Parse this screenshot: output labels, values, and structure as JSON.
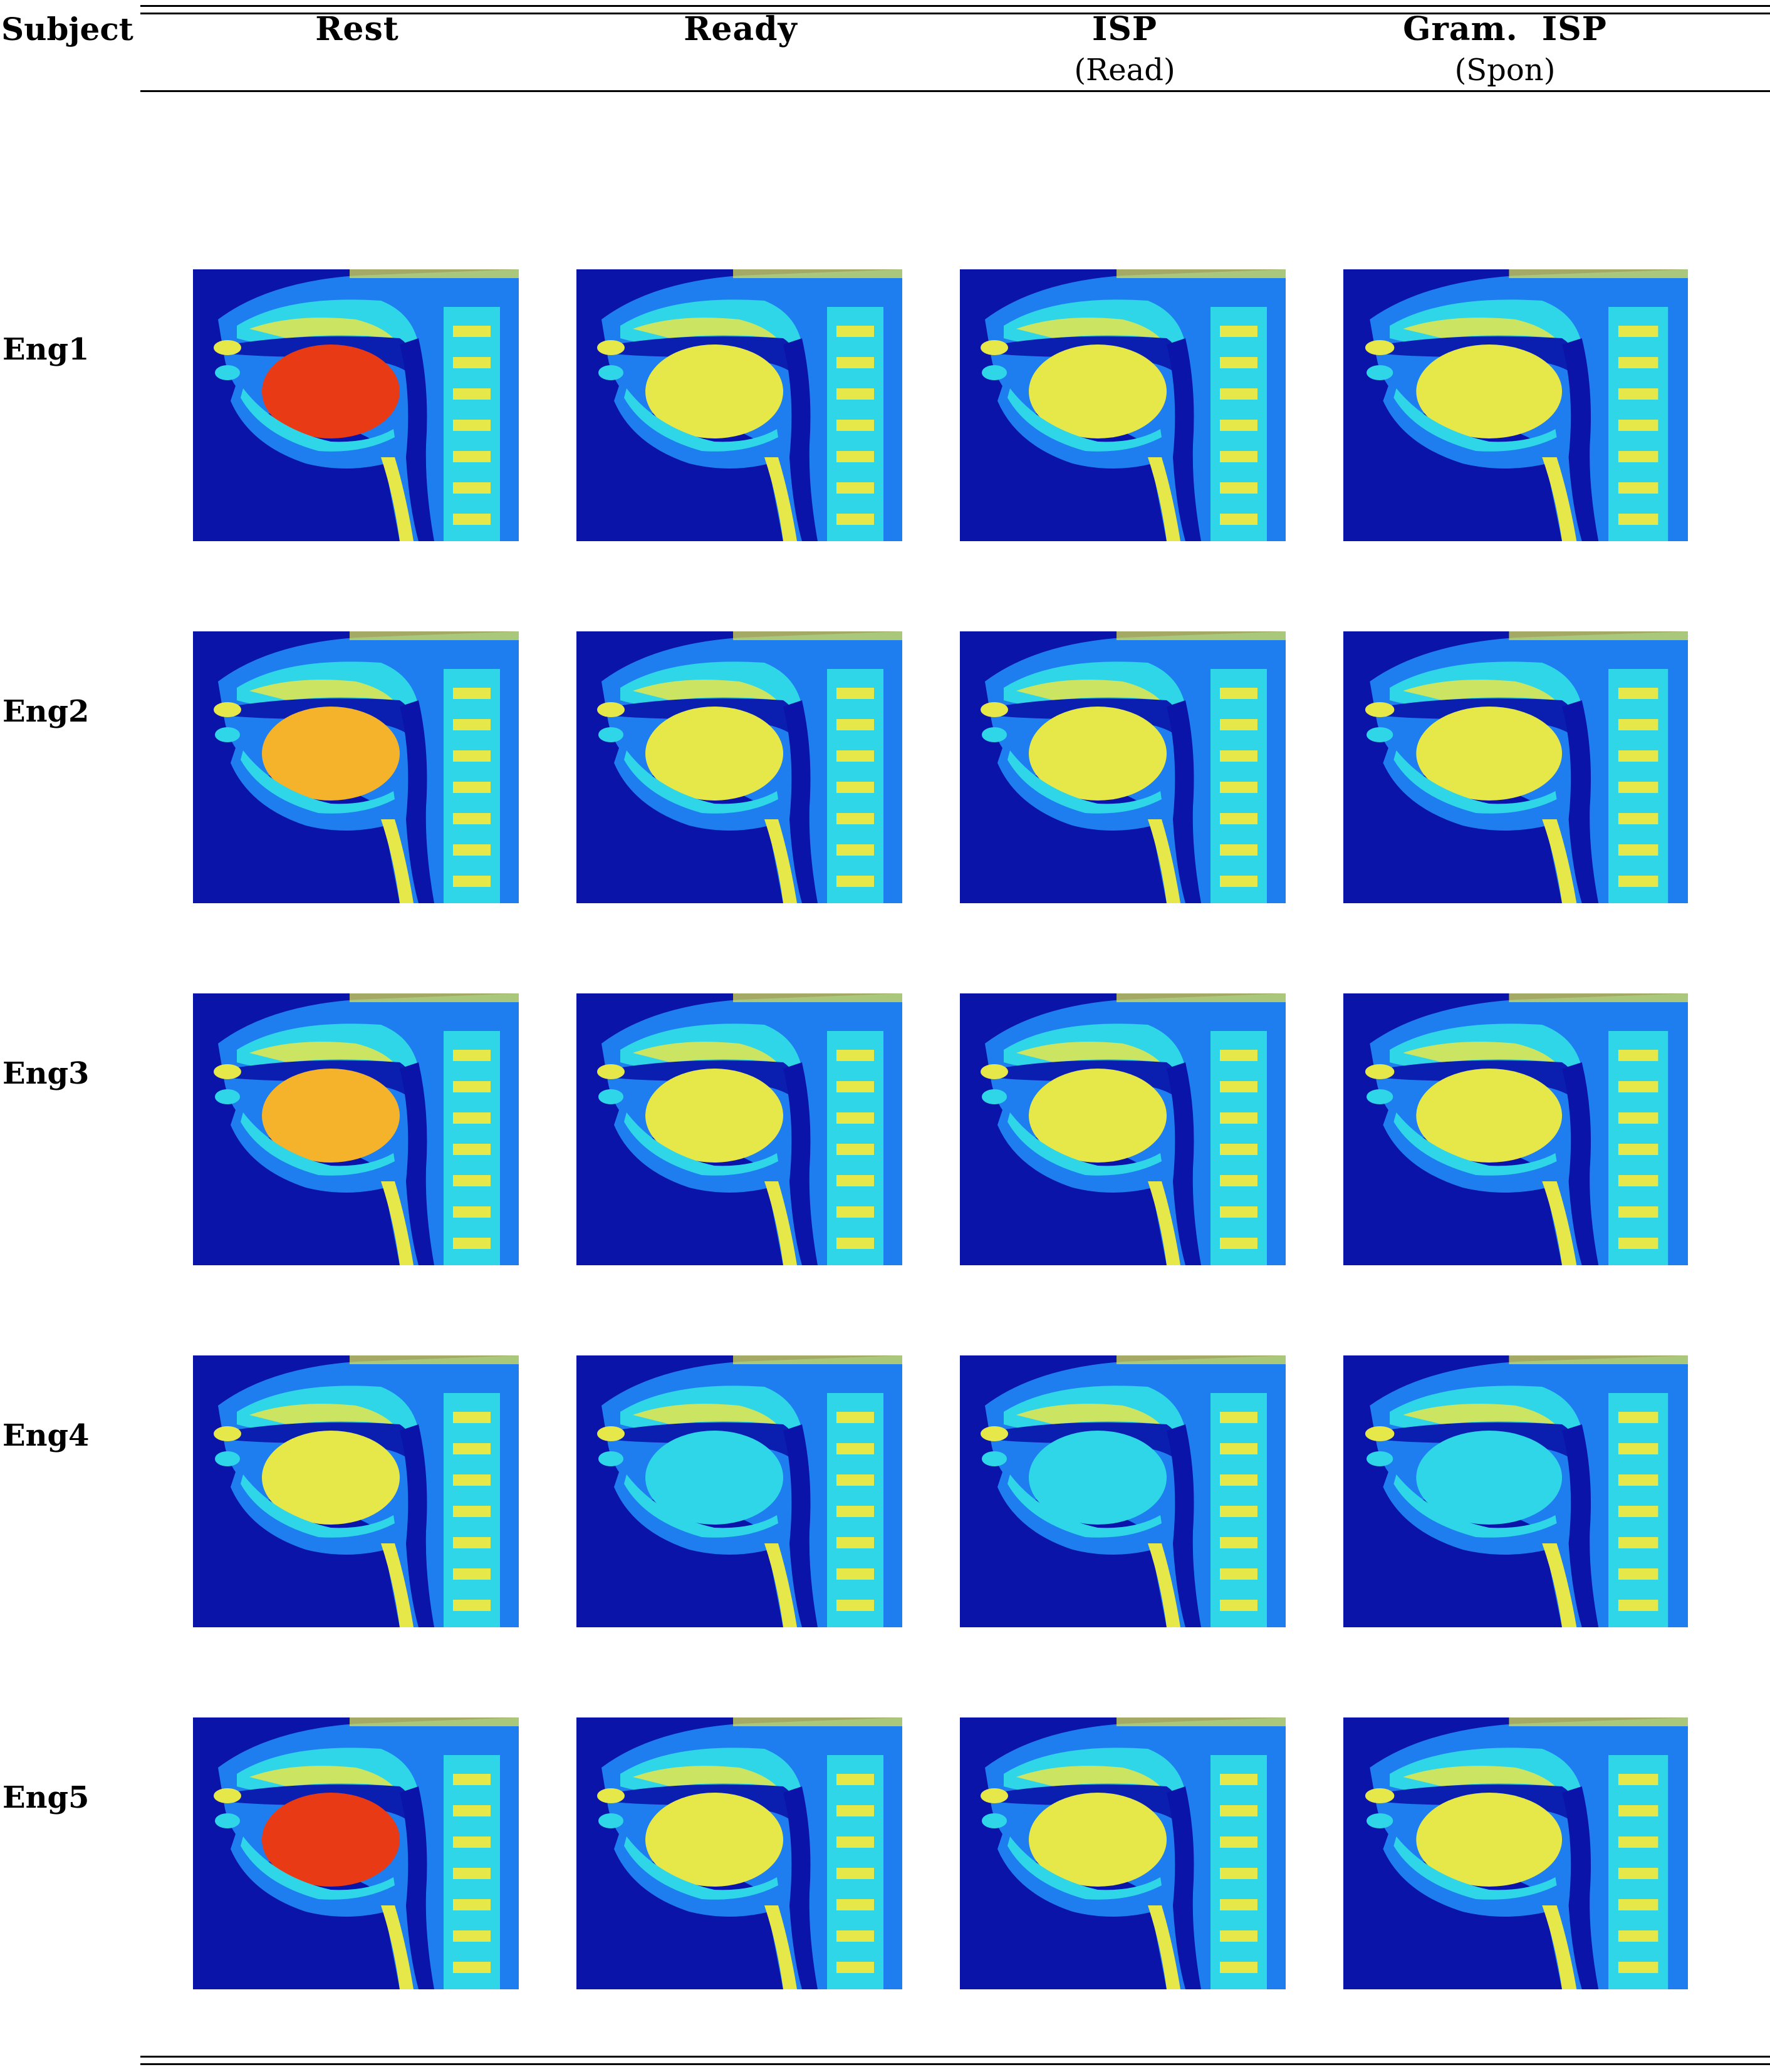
{
  "table": {
    "subject_header": "Subject",
    "columns": [
      {
        "label": "Rest",
        "sub": ""
      },
      {
        "label": "Ready",
        "sub": ""
      },
      {
        "label": "ISP",
        "sub": "(Read)"
      },
      {
        "label": "Gram.  ISP",
        "sub": "(Spon)"
      }
    ],
    "rows": [
      {
        "label": "Eng1",
        "tongue": [
          "hot",
          "mid",
          "mid",
          "mid"
        ]
      },
      {
        "label": "Eng2",
        "tongue": [
          "warm",
          "mid",
          "mid",
          "mid"
        ]
      },
      {
        "label": "Eng3",
        "tongue": [
          "warm",
          "mid",
          "mid",
          "mid"
        ]
      },
      {
        "label": "Eng4",
        "tongue": [
          "mid",
          "cool",
          "cool",
          "cool"
        ]
      },
      {
        "label": "Eng5",
        "tongue": [
          "hot",
          "mid",
          "mid",
          "mid"
        ]
      }
    ]
  },
  "image_type": "midsagittal MRI, jet colormap",
  "colors": {
    "background": "#0a14a8",
    "tissue_low": "#1e7ef0",
    "tissue_mid": "#2fd6e8",
    "tissue_high": "#e6e84a",
    "hot": "#e83a14"
  }
}
